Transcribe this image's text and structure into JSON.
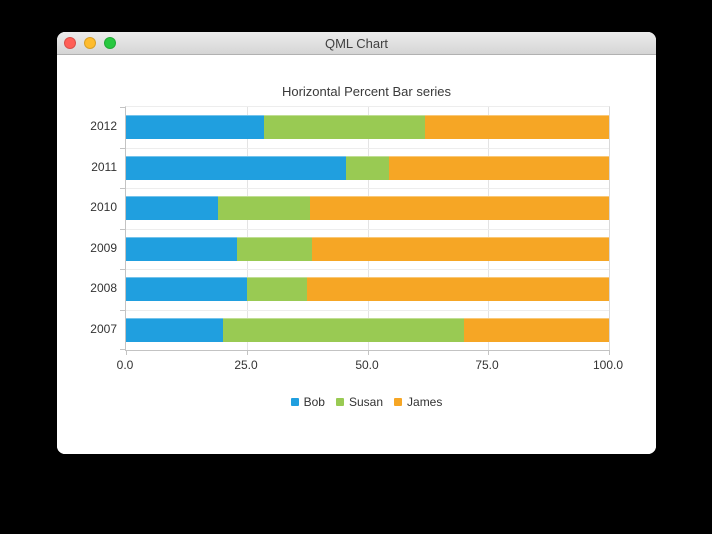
{
  "window": {
    "title": "QML Chart",
    "traffic_lights": {
      "close_color": "#ff5f57",
      "minimize_color": "#febc2e",
      "zoom_color": "#28c840"
    }
  },
  "chart_data": {
    "type": "bar",
    "subtype": "horizontal-percent-stacked",
    "title": "Horizontal Percent Bar series",
    "categories": [
      "2007",
      "2008",
      "2009",
      "2010",
      "2011",
      "2012"
    ],
    "category_display_order": "2012 at top, 2007 at bottom",
    "series": [
      {
        "name": "Bob",
        "color": "#209fdf",
        "values": [
          2,
          2,
          3,
          4,
          5,
          6
        ]
      },
      {
        "name": "Susan",
        "color": "#99ca53",
        "values": [
          5,
          1,
          2,
          4,
          1,
          7
        ]
      },
      {
        "name": "James",
        "color": "#f6a625",
        "values": [
          3,
          5,
          8,
          13,
          5,
          8
        ]
      }
    ],
    "percentages_by_category": {
      "2007": [
        20.0,
        50.0,
        30.0
      ],
      "2008": [
        25.0,
        12.5,
        62.5
      ],
      "2009": [
        23.08,
        15.38,
        61.54
      ],
      "2010": [
        19.05,
        19.05,
        61.9
      ],
      "2011": [
        45.45,
        9.09,
        45.45
      ],
      "2012": [
        28.57,
        33.33,
        38.1
      ]
    },
    "x_ticks": [
      "0.0",
      "25.0",
      "50.0",
      "75.0",
      "100.0"
    ],
    "xlim": [
      0,
      100
    ],
    "grid": true,
    "legend_position": "bottom"
  }
}
